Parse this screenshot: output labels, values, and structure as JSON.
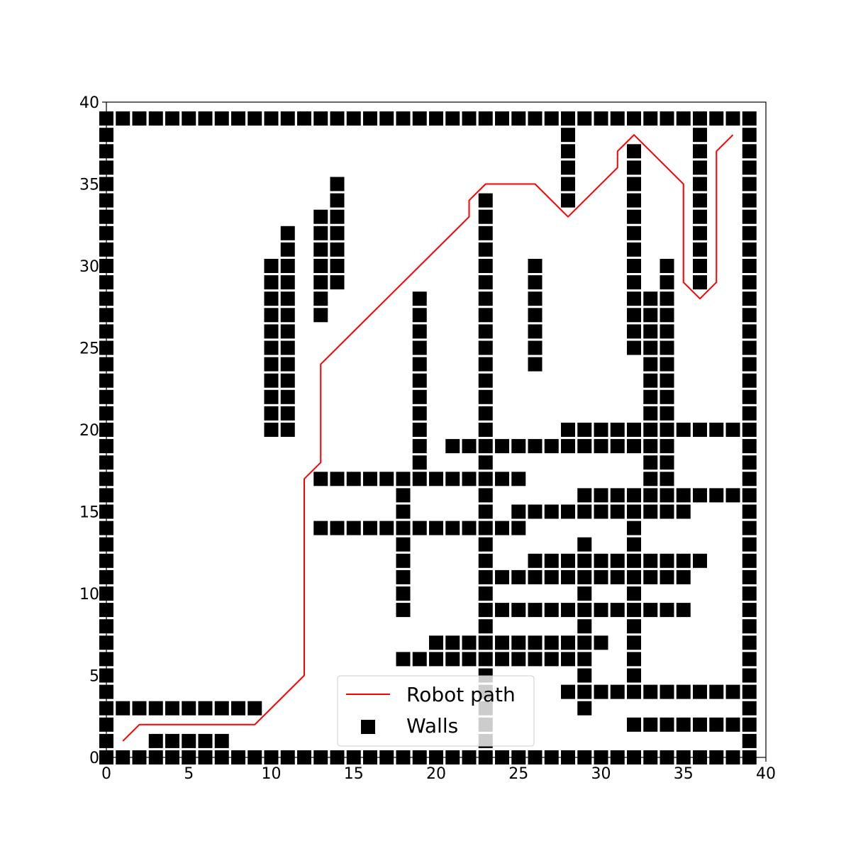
{
  "chart_data": {
    "type": "scatter",
    "title": "",
    "xlabel": "",
    "ylabel": "",
    "xlim": [
      0,
      40
    ],
    "ylim": [
      0,
      40
    ],
    "xticks": [
      "0",
      "5",
      "10",
      "15",
      "20",
      "25",
      "30",
      "35",
      "40"
    ],
    "yticks": [
      "0",
      "5",
      "10",
      "15",
      "20",
      "25",
      "30",
      "35",
      "40"
    ],
    "grid": false,
    "legend": {
      "placement": "lower-center",
      "entries": [
        "Robot path",
        "Walls"
      ]
    },
    "colors": {
      "path": "#ff0000",
      "walls": "#000000"
    },
    "series": [
      {
        "name": "Robot path",
        "style": "line",
        "x": [
          1,
          2,
          9,
          12,
          12,
          13,
          13,
          22,
          22,
          23,
          26,
          28,
          31,
          31,
          32,
          35,
          35,
          36,
          37,
          37,
          38
        ],
        "y": [
          1,
          2,
          2,
          5,
          17,
          18,
          24,
          33,
          34,
          35,
          35,
          33,
          36,
          37,
          38,
          35,
          29,
          28,
          29,
          37,
          38
        ]
      },
      {
        "name": "Walls",
        "style": "square-marker",
        "rows": [
          {
            "y": 39,
            "x": [
              [
                0,
                39
              ]
            ]
          },
          {
            "y": 0,
            "x": [
              [
                0,
                39
              ]
            ]
          },
          {
            "y": 38,
            "x": [
              0,
              28,
              36,
              39
            ]
          },
          {
            "y": 37,
            "x": [
              0,
              28,
              32,
              36,
              39
            ]
          },
          {
            "y": 36,
            "x": [
              0,
              28,
              32,
              36,
              39
            ]
          },
          {
            "y": 35,
            "x": [
              0,
              14,
              28,
              32,
              36,
              39
            ]
          },
          {
            "y": 34,
            "x": [
              0,
              14,
              23,
              28,
              32,
              36,
              39
            ]
          },
          {
            "y": 33,
            "x": [
              0,
              13,
              14,
              23,
              32,
              36,
              39
            ]
          },
          {
            "y": 32,
            "x": [
              0,
              11,
              13,
              14,
              23,
              32,
              36,
              39
            ]
          },
          {
            "y": 31,
            "x": [
              0,
              11,
              13,
              14,
              23,
              32,
              36,
              39
            ]
          },
          {
            "y": 30,
            "x": [
              0,
              10,
              11,
              13,
              14,
              23,
              26,
              32,
              34,
              36,
              39
            ]
          },
          {
            "y": 29,
            "x": [
              0,
              10,
              11,
              13,
              14,
              23,
              26,
              32,
              34,
              36,
              39
            ]
          },
          {
            "y": 28,
            "x": [
              0,
              10,
              11,
              13,
              19,
              23,
              26,
              32,
              33,
              34,
              39
            ]
          },
          {
            "y": 27,
            "x": [
              0,
              10,
              11,
              13,
              19,
              23,
              26,
              32,
              33,
              34,
              39
            ]
          },
          {
            "y": 26,
            "x": [
              0,
              10,
              11,
              19,
              23,
              26,
              32,
              33,
              34,
              39
            ]
          },
          {
            "y": 25,
            "x": [
              0,
              10,
              11,
              19,
              23,
              26,
              32,
              33,
              34,
              39
            ]
          },
          {
            "y": 24,
            "x": [
              0,
              10,
              11,
              19,
              23,
              26,
              33,
              34,
              39
            ]
          },
          {
            "y": 23,
            "x": [
              0,
              10,
              11,
              19,
              23,
              33,
              34,
              39
            ]
          },
          {
            "y": 22,
            "x": [
              0,
              10,
              11,
              19,
              23,
              33,
              34,
              39
            ]
          },
          {
            "y": 21,
            "x": [
              0,
              10,
              11,
              19,
              23,
              33,
              34,
              39
            ]
          },
          {
            "y": 20,
            "x": [
              0,
              10,
              11,
              19,
              23,
              [
                28,
                39
              ]
            ]
          },
          {
            "y": 19,
            "x": [
              0,
              19,
              [
                21,
                34
              ],
              39
            ]
          },
          {
            "y": 18,
            "x": [
              0,
              19,
              23,
              33,
              34,
              39
            ]
          },
          {
            "y": 17,
            "x": [
              0,
              [
                13,
                25
              ],
              33,
              34,
              39
            ]
          },
          {
            "y": 16,
            "x": [
              0,
              18,
              23,
              [
                29,
                39
              ]
            ]
          },
          {
            "y": 15,
            "x": [
              0,
              18,
              23,
              [
                25,
                35
              ],
              39
            ]
          },
          {
            "y": 14,
            "x": [
              0,
              [
                13,
                25
              ],
              32,
              39
            ]
          },
          {
            "y": 13,
            "x": [
              0,
              18,
              23,
              29,
              32,
              39
            ]
          },
          {
            "y": 12,
            "x": [
              0,
              18,
              23,
              [
                26,
                36
              ],
              39
            ]
          },
          {
            "y": 11,
            "x": [
              0,
              18,
              [
                23,
                35
              ],
              39
            ]
          },
          {
            "y": 10,
            "x": [
              0,
              18,
              23,
              29,
              32,
              39
            ]
          },
          {
            "y": 9,
            "x": [
              0,
              18,
              [
                23,
                35
              ],
              39
            ]
          },
          {
            "y": 8,
            "x": [
              0,
              23,
              29,
              32,
              39
            ]
          },
          {
            "y": 7,
            "x": [
              0,
              [
                20,
                30
              ],
              32,
              39
            ]
          },
          {
            "y": 6,
            "x": [
              0,
              [
                18,
                29
              ],
              32,
              39
            ]
          },
          {
            "y": 5,
            "x": [
              0,
              23,
              29,
              32,
              39
            ]
          },
          {
            "y": 4,
            "x": [
              0,
              23,
              [
                28,
                39
              ]
            ]
          },
          {
            "y": 3,
            "x": [
              [
                0,
                9
              ],
              23,
              29,
              39
            ]
          },
          {
            "y": 2,
            "x": [
              0,
              23,
              [
                32,
                39
              ]
            ]
          },
          {
            "y": 1,
            "x": [
              0,
              [
                3,
                7
              ],
              23,
              39
            ]
          }
        ]
      }
    ]
  }
}
